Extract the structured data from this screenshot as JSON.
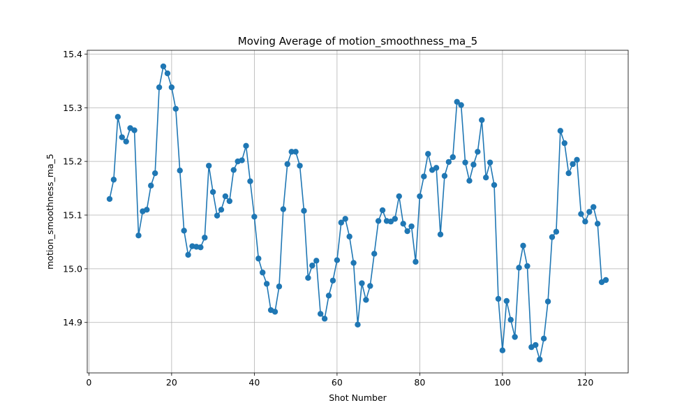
{
  "chart_data": {
    "type": "line",
    "title": "Moving Average of motion_smoothness_ma_5",
    "xlabel": "Shot Number",
    "ylabel": "motion_smoothness_ma_5",
    "xlim": [
      -0.4,
      130.4
    ],
    "ylim": [
      14.806,
      15.407
    ],
    "x_ticks": [
      0,
      20,
      40,
      60,
      80,
      100,
      120
    ],
    "y_ticks": [
      14.9,
      15.0,
      15.1,
      15.2,
      15.3,
      15.4
    ],
    "y_tick_labels": [
      "14.9",
      "15.0",
      "15.1",
      "15.2",
      "15.3",
      "15.4"
    ],
    "grid": true,
    "markers": true,
    "colors": {
      "series": "#1f77b4"
    },
    "series": [
      {
        "x": [
          5,
          6,
          7,
          8,
          9,
          10,
          11,
          12,
          13,
          14,
          15,
          16,
          17,
          18,
          19,
          20,
          21,
          22,
          23,
          24,
          25,
          26,
          27,
          28,
          29,
          30,
          31,
          32,
          33,
          34,
          35,
          36,
          37,
          38,
          39,
          40,
          41,
          42,
          43,
          44,
          45,
          46,
          47,
          48,
          49,
          50,
          51,
          52,
          53,
          54,
          55,
          56,
          57,
          58,
          59,
          60,
          61,
          62,
          63,
          64,
          65,
          66,
          67,
          68,
          69,
          70,
          71,
          72,
          73,
          74,
          75,
          76,
          77,
          78,
          79,
          80,
          81,
          82,
          83,
          84,
          85,
          86,
          87,
          88,
          89,
          90,
          91,
          92,
          93,
          94,
          95,
          96,
          97,
          98,
          99,
          100,
          101,
          102,
          103,
          104,
          105,
          106,
          107,
          108,
          109,
          110,
          111,
          112,
          113,
          114,
          115,
          116,
          117,
          118,
          119,
          120,
          121,
          122,
          123,
          124,
          125
        ],
        "values": [
          15.13,
          15.166,
          15.283,
          15.245,
          15.237,
          15.262,
          15.258,
          15.062,
          15.107,
          15.11,
          15.155,
          15.178,
          15.338,
          15.377,
          15.364,
          15.338,
          15.298,
          15.183,
          15.071,
          15.026,
          15.042,
          15.041,
          15.04,
          15.058,
          15.192,
          15.143,
          15.099,
          15.11,
          15.135,
          15.126,
          15.184,
          15.2,
          15.202,
          15.229,
          15.163,
          15.097,
          15.019,
          14.993,
          14.972,
          14.923,
          14.92,
          14.967,
          15.111,
          15.195,
          15.218,
          15.218,
          15.192,
          15.108,
          14.983,
          15.006,
          15.015,
          14.916,
          14.907,
          14.95,
          14.978,
          15.016,
          15.086,
          15.093,
          15.06,
          15.011,
          14.896,
          14.973,
          14.942,
          14.968,
          15.028,
          15.089,
          15.109,
          15.089,
          15.088,
          15.093,
          15.135,
          15.084,
          15.07,
          15.079,
          15.013,
          15.135,
          15.172,
          15.214,
          15.184,
          15.188,
          15.064,
          15.173,
          15.199,
          15.208,
          15.311,
          15.305,
          15.198,
          15.164,
          15.194,
          15.218,
          15.277,
          15.17,
          15.198,
          15.156,
          14.944,
          14.848,
          14.94,
          14.905,
          14.873,
          15.002,
          15.043,
          15.005,
          14.854,
          14.858,
          14.831,
          14.87,
          14.939,
          15.059,
          15.069,
          15.257,
          15.234,
          15.178,
          15.195,
          15.203,
          15.102,
          15.088,
          15.106,
          15.115,
          15.084,
          14.975,
          14.979
        ]
      }
    ]
  }
}
